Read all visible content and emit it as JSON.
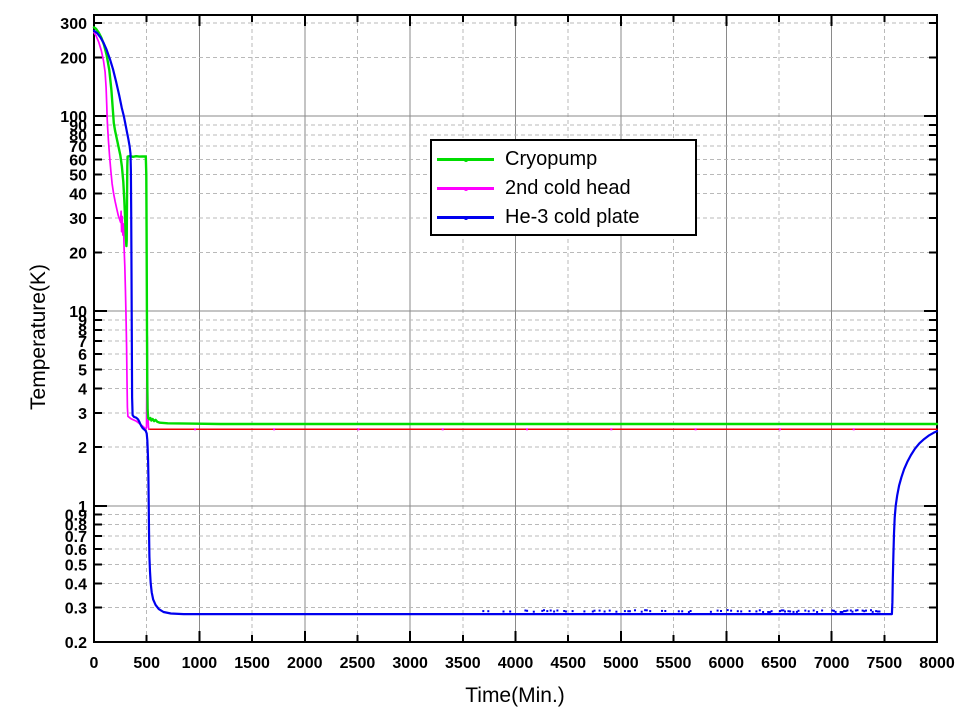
{
  "chart_data": {
    "type": "line",
    "title": "",
    "xlabel": "Time(Min.)",
    "ylabel": "Temperature(K)",
    "x_scale": "linear",
    "y_scale": "log",
    "xlim": [
      0,
      8000
    ],
    "ylim": [
      0.2,
      330
    ],
    "x_ticks": [
      0,
      500,
      1000,
      1500,
      2000,
      2500,
      3000,
      3500,
      4000,
      4500,
      5000,
      5500,
      6000,
      6500,
      7000,
      7500,
      8000
    ],
    "y_ticks": [
      300,
      200,
      100,
      90,
      80,
      70,
      60,
      50,
      40,
      30,
      20,
      10,
      9,
      8,
      7,
      6,
      5,
      4,
      3,
      2,
      1,
      0.9,
      0.8,
      0.7,
      0.6,
      0.5,
      0.4,
      0.3,
      0.2
    ],
    "grid": {
      "x_major_every": 1000,
      "x_minor_every": 500,
      "y_major_at": [
        1,
        10,
        100
      ],
      "major_color": "#8a8a8a",
      "minor_color": "#b9b9b9",
      "minor_dashed": true
    },
    "legend": {
      "position": "upper-center",
      "border": true
    },
    "series": [
      {
        "name": "Cryopump",
        "color": "#00dd00",
        "width": 2.4,
        "points": [
          [
            0,
            285
          ],
          [
            20,
            280
          ],
          [
            45,
            268
          ],
          [
            70,
            252
          ],
          [
            95,
            232
          ],
          [
            120,
            206
          ],
          [
            145,
            172
          ],
          [
            165,
            136
          ],
          [
            180,
            105
          ],
          [
            188,
            92
          ],
          [
            200,
            84
          ],
          [
            215,
            77
          ],
          [
            232,
            70
          ],
          [
            250,
            63
          ],
          [
            265,
            55
          ],
          [
            278,
            46
          ],
          [
            288,
            37
          ],
          [
            296,
            29
          ],
          [
            303,
            23.5
          ],
          [
            307,
            21.5
          ],
          [
            310,
            23
          ],
          [
            313,
            36
          ],
          [
            316,
            55
          ],
          [
            319,
            62
          ],
          [
            340,
            62.3
          ],
          [
            370,
            61.8
          ],
          [
            400,
            62.2
          ],
          [
            430,
            61.9
          ],
          [
            460,
            62.1
          ],
          [
            492,
            62
          ],
          [
            496,
            50
          ],
          [
            499,
            25
          ],
          [
            502,
            10
          ],
          [
            505,
            4.6
          ],
          [
            509,
            3.1
          ],
          [
            514,
            2.82
          ],
          [
            525,
            2.78
          ],
          [
            535,
            2.82
          ],
          [
            545,
            2.74
          ],
          [
            557,
            2.79
          ],
          [
            570,
            2.72
          ],
          [
            585,
            2.76
          ],
          [
            600,
            2.7
          ],
          [
            625,
            2.67
          ],
          [
            700,
            2.65
          ],
          [
            900,
            2.64
          ],
          [
            1200,
            2.63
          ],
          [
            2000,
            2.63
          ],
          [
            3000,
            2.63
          ],
          [
            4000,
            2.63
          ],
          [
            5000,
            2.63
          ],
          [
            6000,
            2.63
          ],
          [
            7000,
            2.63
          ],
          [
            8000,
            2.63
          ]
        ]
      },
      {
        "name": "2nd cold head",
        "color": "#ff00ff",
        "width": 1.7,
        "steady_color": "#ee0000",
        "steady_width": 1.5,
        "steady_points": [
          [
            520,
            2.47
          ],
          [
            8000,
            2.47
          ]
        ],
        "points": [
          [
            0,
            268
          ],
          [
            20,
            258
          ],
          [
            45,
            240
          ],
          [
            70,
            216
          ],
          [
            90,
            192
          ],
          [
            105,
            168
          ],
          [
            115,
            140
          ],
          [
            121,
            112
          ],
          [
            124,
            99
          ],
          [
            130,
            86
          ],
          [
            138,
            74
          ],
          [
            148,
            62
          ],
          [
            160,
            52
          ],
          [
            172,
            45
          ],
          [
            186,
            40
          ],
          [
            200,
            36.5
          ],
          [
            215,
            33.5
          ],
          [
            230,
            31
          ],
          [
            243,
            29.5
          ],
          [
            252,
            28.5
          ],
          [
            257,
            32.5
          ],
          [
            262,
            25.5
          ],
          [
            268,
            30.5
          ],
          [
            274,
            24.5
          ],
          [
            280,
            28
          ],
          [
            286,
            21
          ],
          [
            292,
            17
          ],
          [
            298,
            13
          ],
          [
            304,
            9.5
          ],
          [
            309,
            6.5
          ],
          [
            313,
            4.4
          ],
          [
            317,
            3.2
          ],
          [
            322,
            2.88
          ],
          [
            350,
            2.8
          ],
          [
            400,
            2.72
          ],
          [
            440,
            2.62
          ],
          [
            470,
            2.54
          ],
          [
            490,
            2.48
          ],
          [
            498,
            2.52
          ],
          [
            501,
            4.5
          ],
          [
            503,
            7.8
          ],
          [
            506,
            7.3
          ],
          [
            508,
            5
          ],
          [
            511,
            3.1
          ],
          [
            516,
            2.55
          ],
          [
            520,
            2.47
          ]
        ]
      },
      {
        "name": "He-3 cold plate",
        "color": "#0000ee",
        "width": 2.2,
        "points": [
          [
            0,
            274
          ],
          [
            30,
            266
          ],
          [
            60,
            254
          ],
          [
            90,
            238
          ],
          [
            120,
            219
          ],
          [
            150,
            197
          ],
          [
            180,
            174
          ],
          [
            210,
            150
          ],
          [
            240,
            127
          ],
          [
            264,
            110
          ],
          [
            283,
            100
          ],
          [
            298,
            91
          ],
          [
            312,
            83
          ],
          [
            326,
            76
          ],
          [
            338,
            70
          ],
          [
            346,
            64
          ],
          [
            350,
            52
          ],
          [
            353,
            32
          ],
          [
            356,
            16
          ],
          [
            359,
            7.5
          ],
          [
            362,
            3.6
          ],
          [
            366,
            2.92
          ],
          [
            380,
            2.86
          ],
          [
            400,
            2.83
          ],
          [
            418,
            2.78
          ],
          [
            430,
            2.7
          ],
          [
            440,
            2.62
          ],
          [
            450,
            2.56
          ],
          [
            462,
            2.5
          ],
          [
            478,
            2.46
          ],
          [
            492,
            2.42
          ],
          [
            500,
            2.35
          ],
          [
            506,
            2.18
          ],
          [
            510,
            1.95
          ],
          [
            513,
            1.7
          ],
          [
            516,
            1.4
          ],
          [
            519,
            1.05
          ],
          [
            522,
            0.75
          ],
          [
            526,
            0.55
          ],
          [
            531,
            0.46
          ],
          [
            538,
            0.4
          ],
          [
            548,
            0.36
          ],
          [
            562,
            0.33
          ],
          [
            585,
            0.31
          ],
          [
            615,
            0.295
          ],
          [
            660,
            0.285
          ],
          [
            730,
            0.28
          ],
          [
            850,
            0.278
          ],
          [
            1200,
            0.278
          ],
          [
            2000,
            0.278
          ],
          [
            3000,
            0.278
          ],
          [
            4000,
            0.278
          ],
          [
            5000,
            0.278
          ],
          [
            6000,
            0.278
          ],
          [
            7000,
            0.278
          ],
          [
            7450,
            0.278
          ],
          [
            7572,
            0.278
          ],
          [
            7577,
            0.32
          ],
          [
            7581,
            0.42
          ],
          [
            7586,
            0.56
          ],
          [
            7592,
            0.72
          ],
          [
            7599,
            0.87
          ],
          [
            7608,
            1.0
          ],
          [
            7622,
            1.13
          ],
          [
            7640,
            1.27
          ],
          [
            7662,
            1.4
          ],
          [
            7688,
            1.54
          ],
          [
            7718,
            1.68
          ],
          [
            7752,
            1.82
          ],
          [
            7790,
            1.96
          ],
          [
            7832,
            2.09
          ],
          [
            7878,
            2.2
          ],
          [
            7926,
            2.3
          ],
          [
            7968,
            2.37
          ],
          [
            8000,
            2.41
          ]
        ]
      }
    ],
    "annotations": {
      "cryopump_plateau_K": 62,
      "cryopump_final_K": 2.63,
      "second_cold_head_final_K": 2.47,
      "he3_plate_base_K": 0.278,
      "he3_warmup_start_min": 7572
    }
  }
}
